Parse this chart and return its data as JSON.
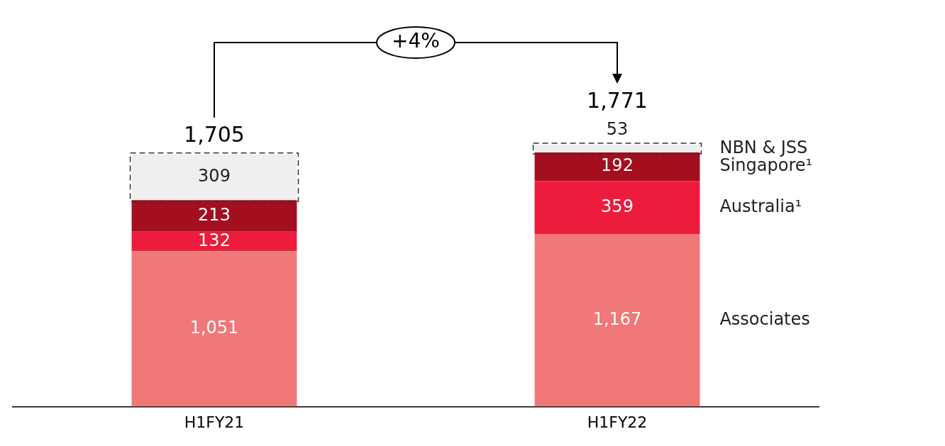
{
  "chart_data": {
    "type": "bar",
    "stacked": true,
    "categories": [
      "H1FY21",
      "H1FY22"
    ],
    "series": [
      {
        "name": "Associates",
        "color": "#f07878",
        "values": [
          1051,
          1167
        ],
        "value_labels": [
          "1,051",
          "1,167"
        ]
      },
      {
        "name": "Australia¹",
        "color": "#ee1c3c",
        "values": [
          132,
          359
        ],
        "value_labels": [
          "132",
          "359"
        ]
      },
      {
        "name": "Singapore¹",
        "color": "#a30f1e",
        "values": [
          213,
          192
        ],
        "value_labels": [
          "213",
          "192"
        ]
      },
      {
        "name": "NBN & JSS",
        "color": "#efefef",
        "values": [
          309,
          53
        ],
        "value_labels": [
          "309",
          "53"
        ],
        "line_style": "dashed"
      }
    ],
    "totals": [
      "1,705",
      "1,771"
    ],
    "annotations": [
      "+4%"
    ],
    "legend": "right",
    "grid": false,
    "tick_labels": "x"
  }
}
